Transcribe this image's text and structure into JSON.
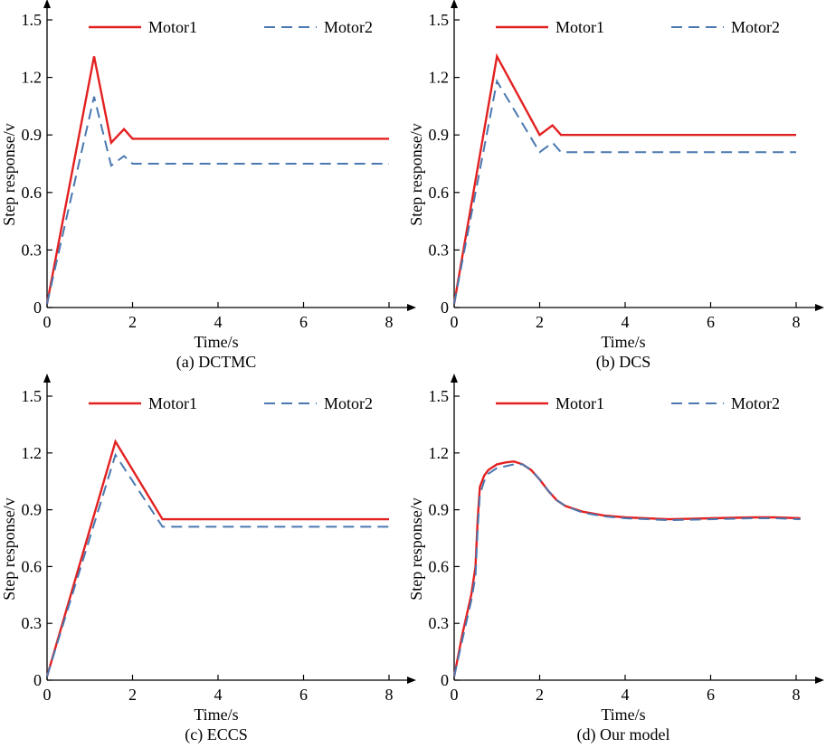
{
  "figure": {
    "panels": 4
  },
  "chart_data": [
    {
      "type": "line",
      "caption": "(a) DCTMC",
      "xlabel": "Time/s",
      "ylabel": "Step response/v",
      "xlim": [
        0,
        8.8
      ],
      "ylim": [
        0,
        1.58
      ],
      "xticks": [
        0,
        2,
        4,
        6,
        8
      ],
      "yticks": [
        0,
        0.3,
        0.6,
        0.9,
        1.2,
        1.5
      ],
      "xtick_labels": [
        "0",
        "2",
        "4",
        "6",
        "8"
      ],
      "ytick_labels": [
        "0",
        "0.3",
        "0.6",
        "0.9",
        "1.2",
        "1.5"
      ],
      "grid": false,
      "legend_position": "top",
      "series": [
        {
          "name": "Motor1",
          "color": "#e32020",
          "style": "solid",
          "x": [
            0,
            1.1,
            1.5,
            1.8,
            2.0,
            8.0
          ],
          "y": [
            0.02,
            1.31,
            0.86,
            0.93,
            0.88,
            0.88
          ]
        },
        {
          "name": "Motor2",
          "color": "#4a78b0",
          "style": "dashed",
          "x": [
            0,
            1.1,
            1.5,
            1.8,
            2.0,
            8.0
          ],
          "y": [
            0.02,
            1.1,
            0.74,
            0.79,
            0.75,
            0.75
          ]
        }
      ]
    },
    {
      "type": "line",
      "caption": "(b) DCS",
      "xlabel": "Time/s",
      "ylabel": "Step response/v",
      "xlim": [
        0,
        8.8
      ],
      "ylim": [
        0,
        1.58
      ],
      "xticks": [
        0,
        2,
        4,
        6,
        8
      ],
      "yticks": [
        0,
        0.3,
        0.6,
        0.9,
        1.2,
        1.5
      ],
      "xtick_labels": [
        "0",
        "2",
        "4",
        "6",
        "8"
      ],
      "ytick_labels": [
        "0",
        "0.3",
        "0.6",
        "0.9",
        "1.2",
        "1.5"
      ],
      "grid": false,
      "legend_position": "top",
      "series": [
        {
          "name": "Motor1",
          "color": "#e32020",
          "style": "solid",
          "x": [
            0,
            1.0,
            2.0,
            2.3,
            2.5,
            8.0
          ],
          "y": [
            0.02,
            1.31,
            0.9,
            0.95,
            0.9,
            0.9
          ]
        },
        {
          "name": "Motor2",
          "color": "#4a78b0",
          "style": "dashed",
          "x": [
            0,
            1.0,
            2.0,
            2.3,
            2.5,
            8.0
          ],
          "y": [
            0.02,
            1.18,
            0.81,
            0.86,
            0.81,
            0.81
          ]
        }
      ]
    },
    {
      "type": "line",
      "caption": "(c) ECCS",
      "xlabel": "Time/s",
      "ylabel": "Step response/v",
      "xlim": [
        0,
        8.8
      ],
      "ylim": [
        0,
        1.58
      ],
      "xticks": [
        0,
        2,
        4,
        6,
        8
      ],
      "yticks": [
        0,
        0.3,
        0.6,
        0.9,
        1.2,
        1.5
      ],
      "xtick_labels": [
        "0",
        "2",
        "4",
        "6",
        "8"
      ],
      "ytick_labels": [
        "0",
        "0.3",
        "0.6",
        "0.9",
        "1.2",
        "1.5"
      ],
      "grid": false,
      "legend_position": "top",
      "series": [
        {
          "name": "Motor1",
          "color": "#e32020",
          "style": "solid",
          "x": [
            0,
            1.6,
            2.7,
            8.0
          ],
          "y": [
            0.02,
            1.26,
            0.85,
            0.85
          ]
        },
        {
          "name": "Motor2",
          "color": "#4a78b0",
          "style": "dashed",
          "x": [
            0,
            1.6,
            2.7,
            8.0
          ],
          "y": [
            0.02,
            1.19,
            0.81,
            0.81
          ]
        }
      ]
    },
    {
      "type": "line",
      "caption": "(d)  Our model",
      "xlabel": "Time/s",
      "ylabel": "Step response/v",
      "xlim": [
        0,
        8.8
      ],
      "ylim": [
        0,
        1.58
      ],
      "xticks": [
        0,
        2,
        4,
        6,
        8
      ],
      "yticks": [
        0,
        0.3,
        0.6,
        0.9,
        1.2,
        1.5
      ],
      "xtick_labels": [
        "0",
        "2",
        "4",
        "6",
        "8"
      ],
      "ytick_labels": [
        "0",
        "0.3",
        "0.6",
        "0.9",
        "1.2",
        "1.5"
      ],
      "grid": false,
      "legend_position": "top",
      "series": [
        {
          "name": "Motor1",
          "color": "#e32020",
          "style": "solid",
          "x": [
            0,
            0.2,
            0.4,
            0.5,
            0.55,
            0.6,
            0.7,
            0.8,
            1.0,
            1.2,
            1.4,
            1.6,
            1.8,
            2.0,
            2.2,
            2.4,
            2.6,
            3.0,
            3.5,
            4.0,
            5.0,
            6.0,
            7.0,
            7.5,
            8.1
          ],
          "y": [
            0.02,
            0.25,
            0.45,
            0.6,
            0.85,
            1.02,
            1.08,
            1.11,
            1.14,
            1.15,
            1.155,
            1.14,
            1.11,
            1.06,
            1.0,
            0.95,
            0.92,
            0.89,
            0.87,
            0.86,
            0.85,
            0.855,
            0.86,
            0.86,
            0.855
          ]
        },
        {
          "name": "Motor2",
          "color": "#4a78b0",
          "style": "dashed",
          "x": [
            0,
            0.2,
            0.4,
            0.5,
            0.55,
            0.6,
            0.7,
            0.8,
            1.0,
            1.2,
            1.4,
            1.6,
            1.8,
            2.0,
            2.2,
            2.4,
            2.6,
            3.0,
            3.5,
            4.0,
            5.0,
            6.0,
            7.0,
            7.5,
            8.1
          ],
          "y": [
            0.02,
            0.22,
            0.42,
            0.55,
            0.8,
            0.98,
            1.05,
            1.09,
            1.12,
            1.13,
            1.14,
            1.14,
            1.11,
            1.06,
            1.0,
            0.95,
            0.92,
            0.885,
            0.865,
            0.855,
            0.845,
            0.85,
            0.855,
            0.855,
            0.85
          ]
        }
      ]
    }
  ]
}
